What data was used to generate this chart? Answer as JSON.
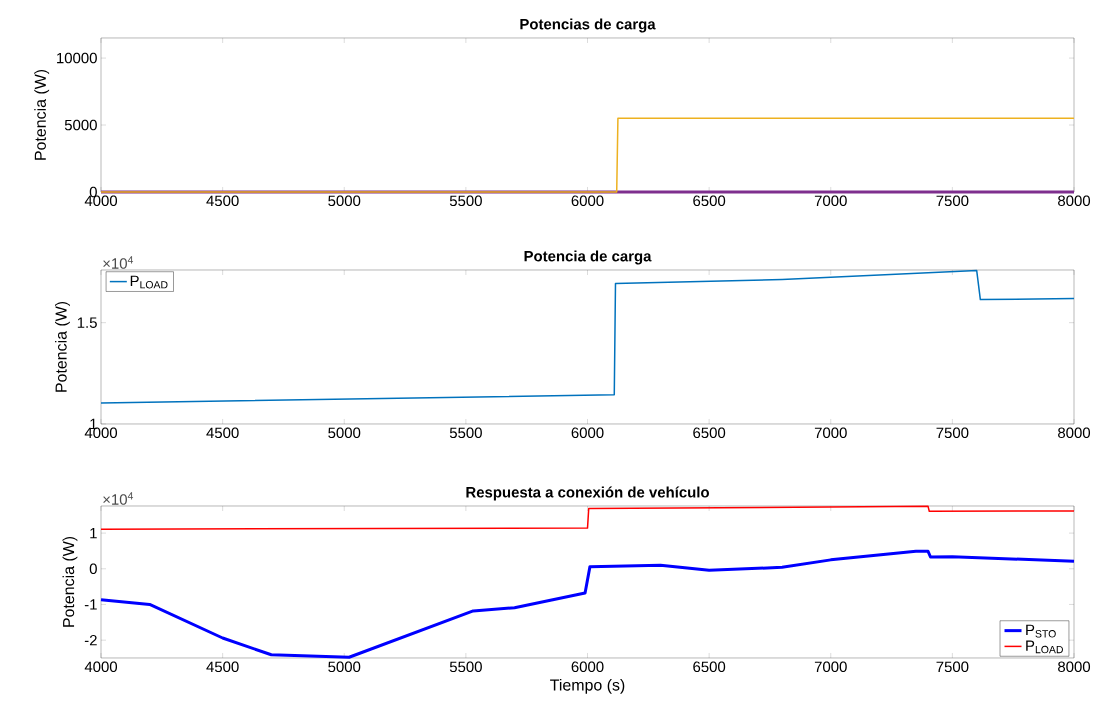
{
  "chart_data": [
    {
      "type": "line",
      "title": "Potencias de carga",
      "ylabel": "Potencia (W)",
      "xlim": [
        4000,
        8000
      ],
      "ylim": [
        0,
        11500
      ],
      "xticks": [
        4000,
        4500,
        5000,
        5500,
        6000,
        6500,
        7000,
        7500,
        8000
      ],
      "yticks": [
        0,
        5000,
        10000
      ],
      "marker": "none",
      "legend": false,
      "series": [
        {
          "color": "#7e2f8e",
          "x": [
            4000,
            8000
          ],
          "values": [
            0,
            0
          ]
        },
        {
          "color": "#edb120",
          "x": [
            4000,
            6120,
            6125,
            8000
          ],
          "values": [
            0,
            0,
            5500,
            5500
          ]
        }
      ]
    },
    {
      "type": "line",
      "title": "Potencia de carga",
      "ylabel": "Potencia (W)",
      "annotations": [
        "×10$^{4}$"
      ],
      "xlim": [
        4000,
        8000
      ],
      "ylim": [
        1,
        1.76
      ],
      "xticks": [
        4000,
        4500,
        5000,
        5500,
        6000,
        6500,
        7000,
        7500,
        8000
      ],
      "yticks": [
        1,
        1.5
      ],
      "marker": "none",
      "legend": "top left",
      "series": [
        {
          "name": "P$_{LOAD}$",
          "color": "#0072bd",
          "x": [
            4000,
            6110,
            6115,
            6800,
            7600,
            7615,
            8000
          ],
          "values": [
            1.104,
            1.144,
            1.693,
            1.713,
            1.757,
            1.614,
            1.619
          ]
        }
      ]
    },
    {
      "type": "line",
      "title": "Respuesta a conexión de vehículo",
      "xlabel": "Tiempo (s)",
      "ylabel": "Potencia (W)",
      "annotations": [
        "×10$^{4}$"
      ],
      "xlim": [
        4000,
        8000
      ],
      "ylim": [
        -2.5,
        1.76
      ],
      "xticks": [
        4000,
        4500,
        5000,
        5500,
        6000,
        6500,
        7000,
        7500,
        8000
      ],
      "yticks": [
        -2,
        -1,
        0,
        1
      ],
      "marker": "none",
      "legend": "bottom right",
      "series": [
        {
          "name": "P$_{STO}$",
          "color": "#0000ff",
          "x": [
            4000,
            4200,
            4500,
            4700,
            5020,
            5530,
            5700,
            5990,
            6010,
            6300,
            6500,
            6800,
            7000,
            7350,
            7400,
            7410,
            7500,
            8000
          ],
          "values": [
            -0.87,
            -1.0,
            -1.94,
            -2.41,
            -2.48,
            -1.18,
            -1.09,
            -0.68,
            0.06,
            0.1,
            -0.04,
            0.04,
            0.25,
            0.49,
            0.49,
            0.33,
            0.34,
            0.21
          ]
        },
        {
          "name": "P$_{LOAD}$",
          "color": "#ff0000",
          "x": [
            4000,
            6000,
            6005,
            7400,
            7405,
            8000
          ],
          "values": [
            1.11,
            1.14,
            1.69,
            1.75,
            1.61,
            1.62
          ]
        }
      ]
    }
  ]
}
